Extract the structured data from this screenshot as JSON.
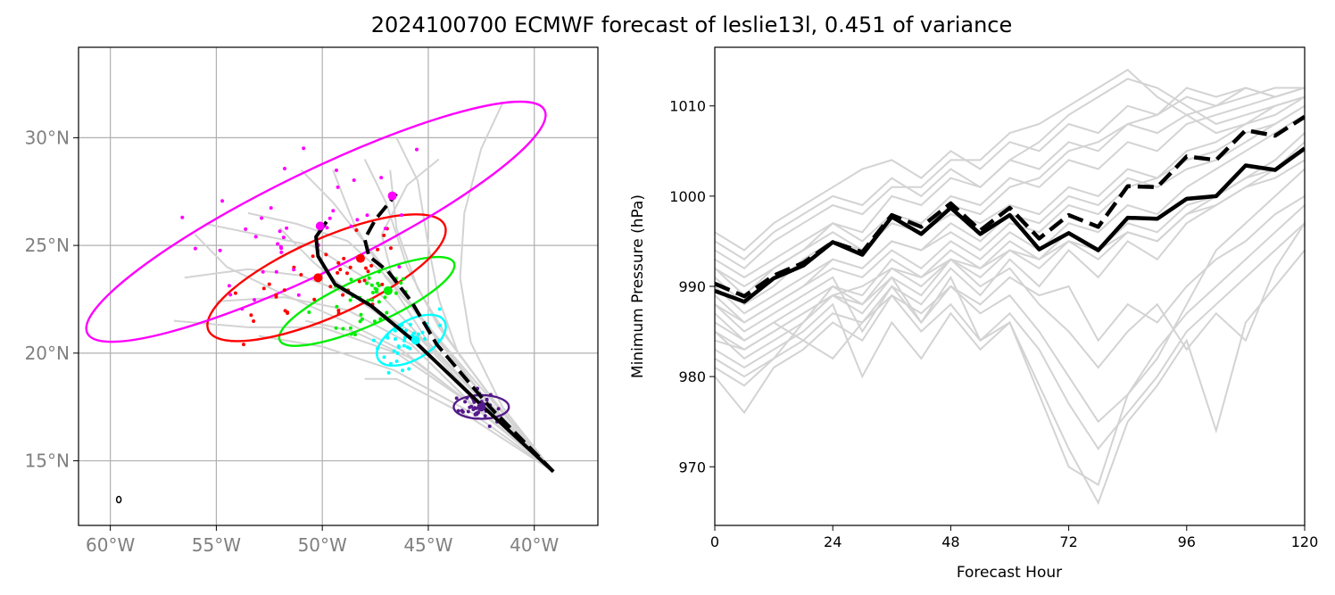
{
  "figure": {
    "title": "2024100700 ECMWF forecast of leslie13l, 0.451 of variance"
  },
  "chart_data": [
    {
      "type": "scatter",
      "name": "track-map",
      "title": "",
      "xlabel": "",
      "ylabel": "",
      "xlim": [
        -61.5,
        -37.0
      ],
      "ylim": [
        12.0,
        34.2
      ],
      "x_ticks": [
        -60,
        -55,
        -50,
        -45,
        -40
      ],
      "x_tick_labels": [
        "60°W",
        "55°W",
        "50°W",
        "45°W",
        "40°W"
      ],
      "y_ticks": [
        15,
        20,
        25,
        30
      ],
      "y_tick_labels": [
        "15°N",
        "20°N",
        "25°N",
        "30°N"
      ],
      "grid": true,
      "colors": {
        "grid": "#b0b0b0",
        "members": "#d3d3d3",
        "mean": "#000000",
        "tick_text": "#808080"
      },
      "ensemble_tracks": [
        [
          [
            -39.1,
            14.5
          ],
          [
            -42.5,
            17.6
          ],
          [
            -45.5,
            20.8
          ],
          [
            -48.4,
            22.6
          ],
          [
            -51.0,
            23.6
          ],
          [
            -53.5,
            23.9
          ],
          [
            -56.5,
            23.5
          ]
        ],
        [
          [
            -39.1,
            14.5
          ],
          [
            -42.6,
            17.3
          ],
          [
            -45.8,
            20.4
          ],
          [
            -48.8,
            22.0
          ],
          [
            -51.8,
            22.6
          ],
          [
            -55.0,
            22.4
          ]
        ],
        [
          [
            -39.1,
            14.5
          ],
          [
            -42.0,
            17.8
          ],
          [
            -44.8,
            21.0
          ],
          [
            -47.0,
            23.5
          ],
          [
            -48.5,
            26.0
          ],
          [
            -49.5,
            28.5
          ]
        ],
        [
          [
            -39.1,
            14.5
          ],
          [
            -41.8,
            17.6
          ],
          [
            -44.0,
            20.6
          ],
          [
            -45.5,
            23.0
          ],
          [
            -46.5,
            25.8
          ],
          [
            -46.8,
            28.5
          ]
        ],
        [
          [
            -39.1,
            14.5
          ],
          [
            -41.6,
            17.4
          ],
          [
            -43.6,
            20.0
          ],
          [
            -44.5,
            22.5
          ],
          [
            -45.0,
            25.0
          ],
          [
            -45.5,
            28.0
          ],
          [
            -46.5,
            30.0
          ]
        ],
        [
          [
            -39.1,
            14.5
          ],
          [
            -41.5,
            17.5
          ],
          [
            -43.0,
            20.5
          ],
          [
            -43.5,
            23.5
          ],
          [
            -43.3,
            26.5
          ],
          [
            -42.5,
            29.5
          ],
          [
            -41.5,
            31.6
          ]
        ],
        [
          [
            -39.1,
            14.5
          ],
          [
            -42.8,
            17.5
          ],
          [
            -46.5,
            20.0
          ],
          [
            -50.0,
            21.2
          ],
          [
            -53.5,
            21.2
          ],
          [
            -57.0,
            21.5
          ]
        ],
        [
          [
            -39.1,
            14.5
          ],
          [
            -42.3,
            17.9
          ],
          [
            -45.2,
            21.5
          ],
          [
            -47.5,
            24.5
          ],
          [
            -49.5,
            27.0
          ],
          [
            -51.0,
            28.5
          ]
        ],
        [
          [
            -39.1,
            14.5
          ],
          [
            -42.9,
            17.2
          ],
          [
            -46.6,
            19.2
          ],
          [
            -50.0,
            20.3
          ],
          [
            -53.0,
            20.8
          ]
        ],
        [
          [
            -39.1,
            14.5
          ],
          [
            -42.4,
            17.7
          ],
          [
            -45.6,
            21.0
          ],
          [
            -48.0,
            23.5
          ],
          [
            -50.5,
            25.0
          ],
          [
            -53.0,
            25.5
          ],
          [
            -55.5,
            26.0
          ]
        ],
        [
          [
            -39.1,
            14.5
          ],
          [
            -42.2,
            17.6
          ],
          [
            -45.0,
            20.5
          ],
          [
            -46.5,
            22.8
          ],
          [
            -47.2,
            25.5
          ],
          [
            -46.0,
            27.8
          ],
          [
            -44.5,
            29.0
          ]
        ],
        [
          [
            -39.1,
            14.5
          ],
          [
            -42.7,
            17.4
          ],
          [
            -46.2,
            20.1
          ],
          [
            -49.0,
            21.5
          ],
          [
            -52.0,
            22.8
          ],
          [
            -54.5,
            24.0
          ],
          [
            -56.0,
            25.5
          ]
        ],
        [
          [
            -39.1,
            14.5
          ],
          [
            -42.5,
            17.3
          ],
          [
            -45.9,
            19.8
          ],
          [
            -48.5,
            21.0
          ],
          [
            -50.8,
            21.5
          ]
        ],
        [
          [
            -39.1,
            14.5
          ],
          [
            -41.9,
            17.8
          ],
          [
            -44.5,
            21.2
          ],
          [
            -46.0,
            24.0
          ],
          [
            -47.0,
            27.0
          ],
          [
            -48.0,
            29.0
          ]
        ],
        [
          [
            -39.1,
            14.5
          ],
          [
            -42.1,
            17.6
          ],
          [
            -44.8,
            20.9
          ],
          [
            -46.8,
            23.4
          ],
          [
            -48.8,
            25.2
          ],
          [
            -51.2,
            26.0
          ],
          [
            -53.5,
            26.5
          ]
        ],
        [
          [
            -39.1,
            14.5
          ],
          [
            -42.6,
            17.6
          ],
          [
            -45.6,
            20.6
          ],
          [
            -48.2,
            22.4
          ],
          [
            -50.4,
            24.2
          ],
          [
            -52.0,
            25.8
          ]
        ],
        [
          [
            -39.1,
            14.5
          ],
          [
            -43.0,
            17.0
          ],
          [
            -46.5,
            18.8
          ],
          [
            -48.0,
            18.8
          ]
        ]
      ],
      "mean_track": [
        [
          -39.1,
          14.5
        ],
        [
          -42.4,
          17.5
        ],
        [
          -45.6,
          20.5
        ],
        [
          -47.7,
          22.2
        ],
        [
          -49.4,
          23.2
        ],
        [
          -50.2,
          24.5
        ],
        [
          -50.3,
          25.4
        ],
        [
          -49.8,
          26.1
        ]
      ],
      "mean_track_dashed": [
        [
          -39.1,
          14.5
        ],
        [
          -42.1,
          17.5
        ],
        [
          -44.6,
          20.4
        ],
        [
          -45.8,
          22.4
        ],
        [
          -46.9,
          23.8
        ],
        [
          -47.8,
          24.5
        ],
        [
          -48.0,
          25.3
        ],
        [
          -47.5,
          26.2
        ],
        [
          -46.5,
          27.4
        ]
      ],
      "clusters": [
        {
          "name": "purple",
          "color": "#551a8b",
          "center": [
            -42.5,
            17.5
          ],
          "rx": 1.3,
          "ry": 0.55,
          "angle": 0,
          "n": 40,
          "spread": [
            0.7,
            0.5
          ]
        },
        {
          "name": "cyan",
          "color": "#00ffff",
          "center": [
            -45.8,
            20.6
          ],
          "rx": 1.8,
          "ry": 0.9,
          "angle": 30,
          "n": 40,
          "spread": [
            1.1,
            0.7
          ]
        },
        {
          "name": "green",
          "color": "#00ee00",
          "center": [
            -47.9,
            22.4
          ],
          "rx": 4.5,
          "ry": 1.1,
          "angle": 24,
          "n": 40,
          "spread": [
            2.0,
            0.8
          ]
        },
        {
          "name": "red",
          "color": "#ff0000",
          "center": [
            -49.8,
            23.5
          ],
          "rx": 6.1,
          "ry": 1.8,
          "angle": 24,
          "n": 40,
          "spread": [
            2.8,
            1.2
          ]
        },
        {
          "name": "magenta",
          "color": "#ff00ff",
          "center": [
            -50.3,
            26.1
          ],
          "rx": 12.0,
          "ry": 2.3,
          "angle": 26,
          "n": 40,
          "spread": [
            3.5,
            2.2
          ]
        }
      ],
      "cluster_means": [
        {
          "color": "#551a8b",
          "point": [
            -42.5,
            17.5
          ]
        },
        {
          "color": "#00ffff",
          "point": [
            -45.6,
            20.6
          ]
        },
        {
          "color": "#00ee00",
          "point": [
            -46.9,
            22.9
          ]
        },
        {
          "color": "#ff0000",
          "point": [
            -50.2,
            23.5
          ]
        },
        {
          "color": "#ff0000",
          "point": [
            -48.2,
            24.4
          ]
        },
        {
          "color": "#ff00ff",
          "point": [
            -46.7,
            27.3
          ]
        },
        {
          "color": "#ff00ff",
          "point": [
            -50.1,
            25.9
          ]
        }
      ],
      "island": [
        -59.6,
        13.2
      ]
    },
    {
      "type": "line",
      "name": "pressure-timeseries",
      "title": "",
      "xlabel": "Forecast Hour",
      "ylabel": "Minimum Pressure (hPa)",
      "xlim": [
        0,
        120
      ],
      "ylim": [
        963.5,
        1016.5
      ],
      "x_ticks": [
        0,
        24,
        48,
        72,
        96,
        120
      ],
      "y_ticks": [
        970,
        980,
        990,
        1000,
        1010
      ],
      "grid": false,
      "colors": {
        "members": "#d3d3d3",
        "mean": "#000000"
      },
      "x": [
        0,
        6,
        12,
        18,
        24,
        30,
        36,
        42,
        48,
        54,
        60,
        66,
        72,
        78,
        84,
        90,
        96,
        102,
        108,
        114,
        120
      ],
      "series": [
        {
          "style": "solid",
          "values": [
            989.5,
            988.3,
            990.9,
            992.3,
            994.9,
            993.5,
            997.7,
            995.8,
            998.7,
            995.8,
            997.9,
            994.1,
            995.9,
            994.0,
            997.6,
            997.5,
            999.7,
            1000.0,
            1003.4,
            1002.9,
            1005.3
          ]
        },
        {
          "style": "dashed",
          "values": [
            990.3,
            988.9,
            991.2,
            992.6,
            994.9,
            993.8,
            997.9,
            996.6,
            999.2,
            996.2,
            998.7,
            995.3,
            997.9,
            996.6,
            1001.1,
            1001.0,
            1004.4,
            1004.0,
            1007.3,
            1006.7,
            1008.8
          ]
        }
      ],
      "members": [
        [
          985,
          982,
          984,
          986,
          990,
          989,
          993,
          991,
          994,
          992,
          995,
          993,
          996,
          994,
          997,
          996,
          999,
          1000,
          1002,
          1003,
          1005
        ],
        [
          990,
          987,
          989,
          991,
          993,
          992,
          995,
          994,
          996,
          994,
          997,
          996,
          999,
          998,
          1001,
          1002,
          1004,
          1005,
          1007,
          1008,
          1010
        ],
        [
          995,
          993,
          996,
          998,
          1000,
          999,
          1002,
          1000,
          1003,
          1001,
          1004,
          1003,
          1006,
          1005,
          1008,
          1009,
          1011,
          1010,
          1012,
          1011,
          1012
        ],
        [
          980,
          976,
          981,
          983,
          986,
          984,
          989,
          987,
          990,
          988,
          991,
          989,
          990,
          984,
          988,
          986,
          990,
          993,
          995,
          998,
          1000
        ],
        [
          988,
          985,
          987,
          989,
          991,
          985,
          990,
          986,
          991,
          984,
          986,
          978,
          970,
          968,
          978,
          982,
          988,
          994,
          997,
          1000,
          1003
        ],
        [
          992,
          989,
          992,
          994,
          997,
          996,
          1000,
          999,
          1002,
          1001,
          1004,
          1006,
          1009,
          1011,
          1013,
          1012,
          1010,
          1008,
          1009,
          1010,
          1011
        ],
        [
          983,
          981,
          983,
          985,
          988,
          980,
          986,
          982,
          987,
          983,
          986,
          979,
          972,
          966,
          975,
          979,
          984,
          974,
          986,
          990,
          994
        ],
        [
          994,
          992,
          995,
          997,
          999,
          998,
          1001,
          1001,
          1004,
          1004,
          1007,
          1008,
          1010,
          1012,
          1014,
          1011,
          1009,
          1007,
          1008,
          1010,
          1011
        ],
        [
          986,
          984,
          986,
          984,
          982,
          986,
          990,
          988,
          992,
          989,
          993,
          990,
          994,
          991,
          995,
          993,
          997,
          999,
          1001,
          1002,
          1004
        ],
        [
          991,
          988,
          990,
          993,
          995,
          994,
          997,
          996,
          998,
          997,
          999,
          998,
          1001,
          1000,
          1003,
          1002,
          1005,
          1006,
          1008,
          1009,
          1011
        ],
        [
          982,
          980,
          982,
          986,
          989,
          987,
          991,
          989,
          993,
          990,
          992,
          988,
          985,
          981,
          985,
          988,
          983,
          987,
          984,
          992,
          997
        ],
        [
          987,
          984,
          986,
          988,
          990,
          988,
          992,
          990,
          993,
          991,
          994,
          992,
          995,
          993,
          996,
          995,
          998,
          999,
          1001,
          1003,
          1006
        ],
        [
          993,
          991,
          993,
          995,
          997,
          995,
          998,
          997,
          1000,
          999,
          1002,
          1001,
          1004,
          1003,
          1006,
          1005,
          1008,
          1009,
          1010,
          1011,
          1012
        ],
        [
          984,
          983,
          985,
          987,
          989,
          988,
          991,
          986,
          990,
          987,
          989,
          985,
          980,
          975,
          978,
          983,
          987,
          990,
          993,
          996,
          999
        ],
        [
          989,
          986,
          988,
          990,
          992,
          991,
          994,
          992,
          995,
          993,
          996,
          994,
          997,
          996,
          999,
          998,
          1001,
          1003,
          1005,
          1007,
          1009
        ],
        [
          996,
          994,
          997,
          999,
          1001,
          1003,
          1004,
          1002,
          1005,
          1003,
          1006,
          1005,
          1008,
          1007,
          1010,
          1009,
          1012,
          1011,
          1012,
          1011,
          1012
        ],
        [
          981,
          979,
          982,
          984,
          987,
          986,
          989,
          985,
          988,
          984,
          987,
          983,
          977,
          972,
          976,
          980,
          985,
          988,
          991,
          994,
          997
        ],
        [
          988,
          986,
          988,
          990,
          993,
          992,
          995,
          994,
          997,
          995,
          998,
          997,
          1000,
          999,
          1002,
          1001,
          1003,
          1004,
          1006,
          1008,
          1010
        ],
        [
          985,
          983,
          985,
          987,
          989,
          990,
          992,
          991,
          993,
          992,
          994,
          993,
          995,
          994,
          996,
          995,
          998,
          1000,
          1002,
          1004,
          1007
        ],
        [
          992,
          990,
          992,
          994,
          996,
          994,
          997,
          996,
          999,
          998,
          1001,
          1002,
          1005,
          1006,
          1008,
          1007,
          1009,
          1010,
          1011,
          1012,
          1012
        ]
      ]
    }
  ]
}
